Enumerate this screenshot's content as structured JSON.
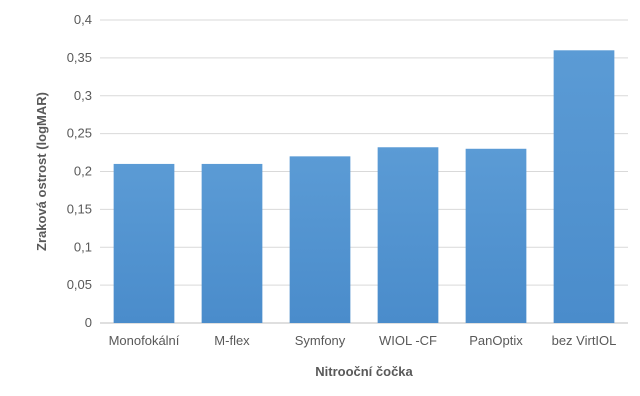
{
  "chart_data": {
    "type": "bar",
    "title": "",
    "xlabel": "Nitrooční čočka",
    "ylabel": "Zraková ostrost (logMAR)",
    "categories": [
      "Monofokální",
      "M-flex",
      "Symfony",
      "WIOL -CF",
      "PanOptix",
      "bez VirtIOL"
    ],
    "values": [
      0.21,
      0.21,
      0.22,
      0.232,
      0.23,
      0.36
    ],
    "ylim": [
      0,
      0.4
    ],
    "yticks": [
      "0",
      "0,05",
      "0,1",
      "0,15",
      "0,2",
      "0,25",
      "0,3",
      "0,35",
      "0,4"
    ],
    "grid": true,
    "legend": "none",
    "bar_color": "#5b9bd5"
  }
}
